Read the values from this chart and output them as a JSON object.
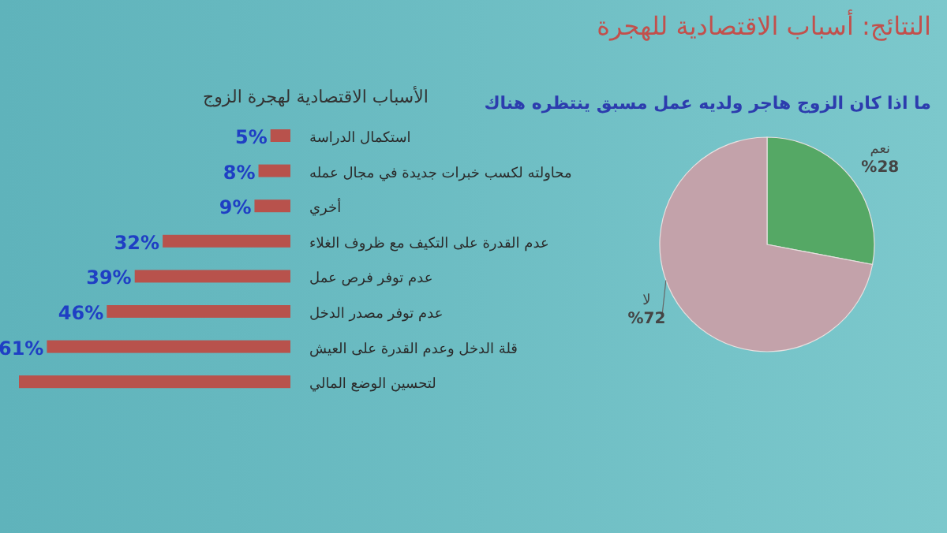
{
  "chart_data": [
    {
      "type": "bar",
      "orientation": "horizontal",
      "title": "الأسباب الاقتصادية لهجرة الزوج",
      "annotations": [
        "النتائج: أسباب الاقتصادية للهجرة"
      ],
      "categories": [
        "استكمال الدراسة",
        "محاولته لكسب خبرات جديدة في مجال عمله",
        "أخري",
        "عدم القدرة على التكيف مع ظروف الغلاء",
        "عدم توفر فرص عمل",
        "عدم توفر مصدر الدخل",
        "قلة الدخل وعدم القدرة على العيش",
        "لتحسين الوضع المالي"
      ],
      "values": [
        5,
        8,
        9,
        32,
        39,
        46,
        61,
        68
      ],
      "value_labels": [
        "5%",
        "8%",
        "9%",
        "32%",
        "39%",
        "46%",
        "61%",
        null
      ],
      "color": "#b8524c"
    },
    {
      "type": "pie",
      "title": "ما اذا كان الزوج هاجر ولديه عمل مسبق ينتظره هناك",
      "categories": [
        "نعم",
        "لا"
      ],
      "values": [
        28,
        72
      ],
      "value_labels": [
        "%28",
        "%72"
      ],
      "colors": [
        "#55a865",
        "#c3a2aa"
      ]
    }
  ]
}
